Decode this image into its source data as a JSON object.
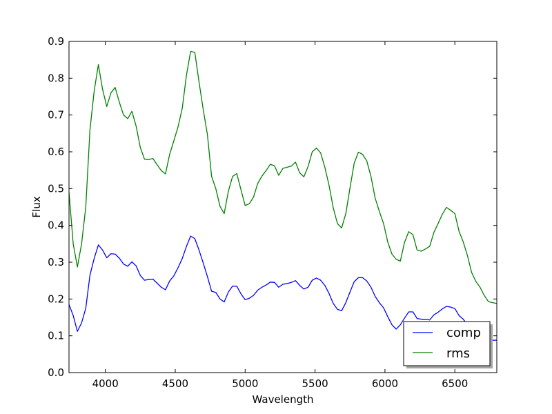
{
  "chart_data": {
    "type": "line",
    "title": "",
    "xlabel": "Wavelength",
    "ylabel": "Flux",
    "xlim": [
      3740,
      6800
    ],
    "ylim": [
      0.0,
      0.9
    ],
    "xticks": [
      4000,
      4500,
      5000,
      5500,
      6000,
      6500
    ],
    "xtick_labels": [
      "4000",
      "4500",
      "5000",
      "5500",
      "6000",
      "6500"
    ],
    "yticks": [
      0.0,
      0.1,
      0.2,
      0.3,
      0.4,
      0.5,
      0.6,
      0.7,
      0.8,
      0.9
    ],
    "ytick_labels": [
      "0.0",
      "0.1",
      "0.2",
      "0.3",
      "0.4",
      "0.5",
      "0.6",
      "0.7",
      "0.8",
      "0.9"
    ],
    "grid": false,
    "legend_position": "lower-right",
    "series": [
      {
        "name": "comp",
        "color": "#0000ff",
        "x": [
          3740,
          3770,
          3800,
          3830,
          3860,
          3890,
          3920,
          3950,
          3980,
          4010,
          4040,
          4070,
          4100,
          4130,
          4160,
          4190,
          4220,
          4250,
          4280,
          4310,
          4340,
          4370,
          4400,
          4430,
          4460,
          4490,
          4520,
          4550,
          4580,
          4610,
          4640,
          4670,
          4700,
          4730,
          4760,
          4790,
          4820,
          4850,
          4880,
          4910,
          4940,
          4970,
          5000,
          5030,
          5060,
          5090,
          5120,
          5150,
          5180,
          5210,
          5240,
          5270,
          5300,
          5330,
          5360,
          5390,
          5420,
          5450,
          5480,
          5510,
          5540,
          5570,
          5600,
          5630,
          5660,
          5690,
          5720,
          5750,
          5780,
          5810,
          5840,
          5870,
          5900,
          5930,
          5960,
          5990,
          6020,
          6050,
          6080,
          6110,
          6140,
          6170,
          6200,
          6230,
          6260,
          6290,
          6320,
          6350,
          6380,
          6410,
          6440,
          6470,
          6500,
          6530,
          6560,
          6590,
          6620,
          6650,
          6680,
          6710,
          6740,
          6770,
          6800
        ],
        "values": [
          0.185,
          0.155,
          0.112,
          0.135,
          0.175,
          0.265,
          0.31,
          0.347,
          0.333,
          0.312,
          0.323,
          0.322,
          0.311,
          0.295,
          0.289,
          0.301,
          0.29,
          0.264,
          0.251,
          0.253,
          0.254,
          0.243,
          0.232,
          0.225,
          0.249,
          0.263,
          0.285,
          0.31,
          0.343,
          0.371,
          0.364,
          0.333,
          0.298,
          0.261,
          0.221,
          0.218,
          0.2,
          0.192,
          0.219,
          0.235,
          0.235,
          0.214,
          0.198,
          0.202,
          0.21,
          0.224,
          0.232,
          0.238,
          0.246,
          0.245,
          0.232,
          0.24,
          0.242,
          0.245,
          0.25,
          0.237,
          0.227,
          0.232,
          0.251,
          0.257,
          0.251,
          0.237,
          0.215,
          0.188,
          0.172,
          0.168,
          0.19,
          0.219,
          0.247,
          0.258,
          0.258,
          0.249,
          0.232,
          0.207,
          0.19,
          0.176,
          0.152,
          0.13,
          0.118,
          0.13,
          0.148,
          0.165,
          0.165,
          0.147,
          0.145,
          0.145,
          0.143,
          0.157,
          0.164,
          0.173,
          0.18,
          0.178,
          0.174,
          0.155,
          0.145,
          0.13,
          0.11,
          0.1,
          0.094,
          0.09,
          0.088,
          0.088,
          0.088
        ]
      },
      {
        "name": "rms",
        "color": "#008000",
        "x": [
          3740,
          3770,
          3800,
          3830,
          3860,
          3890,
          3920,
          3950,
          3980,
          4010,
          4040,
          4070,
          4100,
          4130,
          4160,
          4190,
          4220,
          4250,
          4280,
          4310,
          4340,
          4370,
          4400,
          4430,
          4460,
          4490,
          4520,
          4550,
          4580,
          4610,
          4640,
          4670,
          4700,
          4730,
          4760,
          4790,
          4820,
          4850,
          4880,
          4910,
          4940,
          4970,
          5000,
          5030,
          5060,
          5090,
          5120,
          5150,
          5180,
          5210,
          5240,
          5270,
          5300,
          5330,
          5360,
          5390,
          5420,
          5450,
          5480,
          5510,
          5540,
          5570,
          5600,
          5630,
          5660,
          5690,
          5720,
          5750,
          5780,
          5810,
          5840,
          5870,
          5900,
          5930,
          5960,
          5990,
          6020,
          6050,
          6080,
          6110,
          6140,
          6170,
          6200,
          6230,
          6260,
          6290,
          6320,
          6350,
          6380,
          6410,
          6440,
          6470,
          6500,
          6530,
          6560,
          6590,
          6620,
          6650,
          6680,
          6710,
          6740,
          6770,
          6800
        ],
        "values": [
          0.49,
          0.35,
          0.287,
          0.35,
          0.45,
          0.66,
          0.765,
          0.837,
          0.77,
          0.723,
          0.76,
          0.775,
          0.735,
          0.7,
          0.69,
          0.71,
          0.67,
          0.612,
          0.58,
          0.579,
          0.582,
          0.565,
          0.549,
          0.54,
          0.593,
          0.63,
          0.668,
          0.718,
          0.808,
          0.873,
          0.87,
          0.79,
          0.715,
          0.647,
          0.533,
          0.5,
          0.452,
          0.432,
          0.493,
          0.533,
          0.541,
          0.497,
          0.454,
          0.459,
          0.477,
          0.514,
          0.534,
          0.549,
          0.566,
          0.562,
          0.536,
          0.555,
          0.558,
          0.561,
          0.572,
          0.543,
          0.532,
          0.56,
          0.6,
          0.61,
          0.597,
          0.558,
          0.509,
          0.448,
          0.405,
          0.393,
          0.432,
          0.502,
          0.569,
          0.599,
          0.593,
          0.575,
          0.533,
          0.474,
          0.438,
          0.405,
          0.355,
          0.322,
          0.308,
          0.303,
          0.354,
          0.383,
          0.375,
          0.333,
          0.33,
          0.336,
          0.343,
          0.381,
          0.405,
          0.43,
          0.449,
          0.441,
          0.432,
          0.384,
          0.355,
          0.318,
          0.272,
          0.248,
          0.232,
          0.21,
          0.193,
          0.19,
          0.188
        ]
      }
    ]
  }
}
